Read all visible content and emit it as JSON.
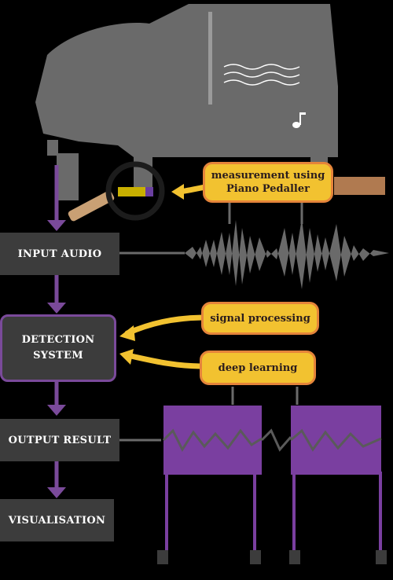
{
  "steps": {
    "input": "INPUT AUDIO",
    "detection_line1": "DETECTION",
    "detection_line2": "SYSTEM",
    "output": "OUTPUT RESULT",
    "visualisation": "VISUALISATION"
  },
  "labels": {
    "measurement_line1": "measurement using",
    "measurement_line2": "Piano Pedaller",
    "signal": "signal processing",
    "deep": "deep learning"
  },
  "colors": {
    "box": "#3c3c3c",
    "arrow": "#7a4a9a",
    "label_fill": "#f2c230",
    "label_border": "#e5843a",
    "gray": "#6a6a6a",
    "purple_wave": "#7a3fa0"
  }
}
